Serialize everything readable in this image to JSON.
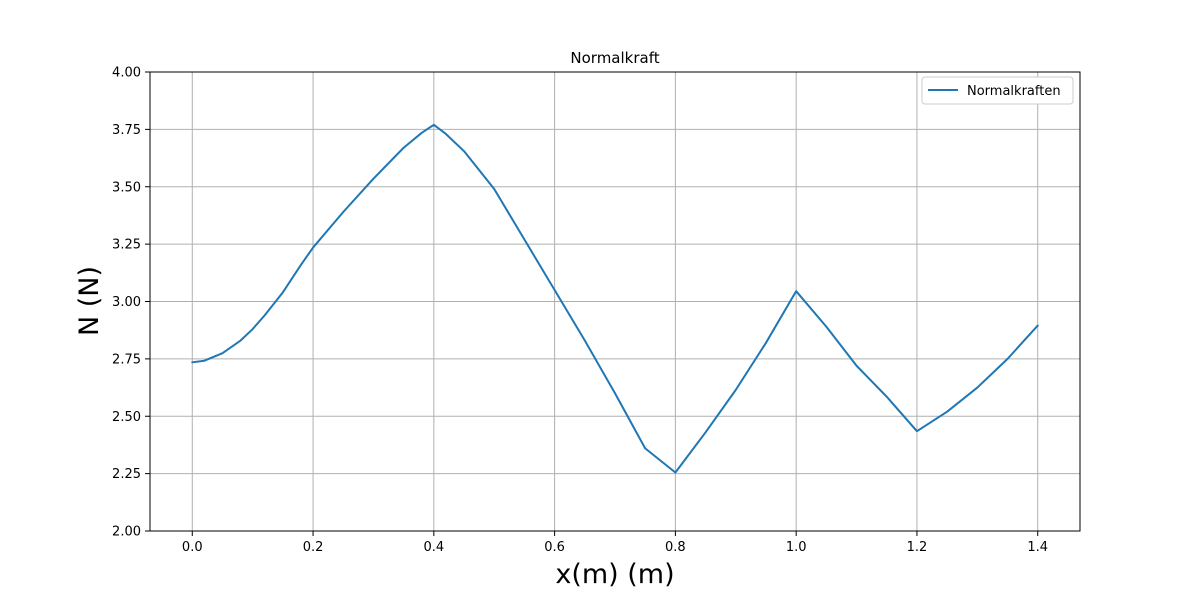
{
  "chart_data": {
    "type": "line",
    "title": "Normalkraft",
    "xlabel": "x(m) (m)",
    "ylabel": "N (N)",
    "xlim": [
      -0.07,
      1.47
    ],
    "ylim": [
      2.0,
      4.0
    ],
    "xticks": [
      0.0,
      0.2,
      0.4,
      0.6,
      0.8,
      1.0,
      1.2,
      1.4
    ],
    "xtick_labels": [
      "0.0",
      "0.2",
      "0.4",
      "0.6",
      "0.8",
      "1.0",
      "1.2",
      "1.4"
    ],
    "yticks": [
      2.0,
      2.25,
      2.5,
      2.75,
      3.0,
      3.25,
      3.5,
      3.75,
      4.0
    ],
    "ytick_labels": [
      "2.00",
      "2.25",
      "2.50",
      "2.75",
      "3.00",
      "3.25",
      "3.50",
      "3.75",
      "4.00"
    ],
    "grid": true,
    "legend_position": "top-right",
    "series": [
      {
        "name": "Normalkraften",
        "color": "#1f77b4",
        "x": [
          0.0,
          0.02,
          0.05,
          0.08,
          0.1,
          0.12,
          0.15,
          0.18,
          0.2,
          0.25,
          0.3,
          0.35,
          0.38,
          0.4,
          0.42,
          0.45,
          0.5,
          0.55,
          0.6,
          0.65,
          0.7,
          0.75,
          0.8,
          0.85,
          0.9,
          0.95,
          1.0,
          1.05,
          1.1,
          1.15,
          1.2,
          1.25,
          1.3,
          1.35,
          1.4
        ],
        "y": [
          2.735,
          2.742,
          2.775,
          2.83,
          2.88,
          2.94,
          3.04,
          3.16,
          3.235,
          3.39,
          3.535,
          3.67,
          3.735,
          3.77,
          3.73,
          3.655,
          3.49,
          3.27,
          3.05,
          2.83,
          2.6,
          2.36,
          2.255,
          2.43,
          2.615,
          2.82,
          3.045,
          2.89,
          2.72,
          2.585,
          2.435,
          2.52,
          2.625,
          2.75,
          2.895
        ]
      }
    ]
  }
}
